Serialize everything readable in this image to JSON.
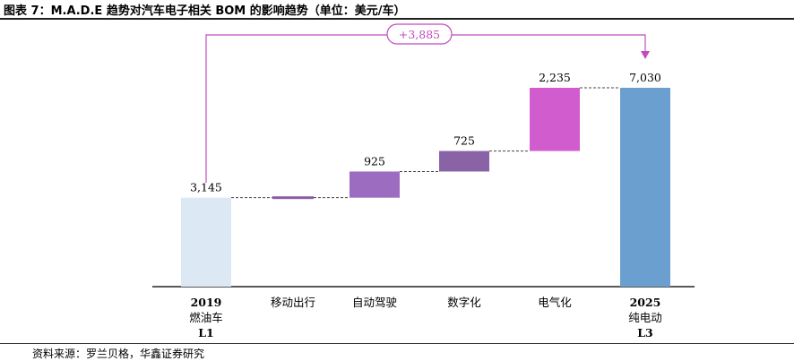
{
  "title": "图表 7：M.A.D.E 趋势对汽车电子相关 BOM 的影响趋势（单位：美元/车）",
  "source": "资料来源：罗兰贝格，华鑫证券研究",
  "colors": {
    "start": "#dce8f4",
    "mobility": "#8e5aa8",
    "autonomous": "#9b6cc0",
    "digital": "#8a63a6",
    "electric": "#d15ccd",
    "end": "#6a9fd0",
    "bracket": "#c04cbf"
  },
  "chart_data": {
    "type": "bar",
    "subtype": "waterfall",
    "categories": [
      [
        "2019",
        "燃油车",
        "L1"
      ],
      [
        "移动出行"
      ],
      [
        "自动驾驶"
      ],
      [
        "数字化"
      ],
      [
        "电气化"
      ],
      [
        "2025",
        "纯电动",
        "L3"
      ]
    ],
    "values": [
      3145,
      null,
      925,
      725,
      2235,
      7030
    ],
    "labels": [
      "3,145",
      "",
      "925",
      "725",
      "2,235",
      "7,030"
    ],
    "kinds": [
      "total",
      "delta",
      "delta",
      "delta",
      "delta",
      "total"
    ],
    "annotation": "+3,885",
    "ylim": [
      0,
      8600
    ],
    "grid": false,
    "legend": "none"
  }
}
